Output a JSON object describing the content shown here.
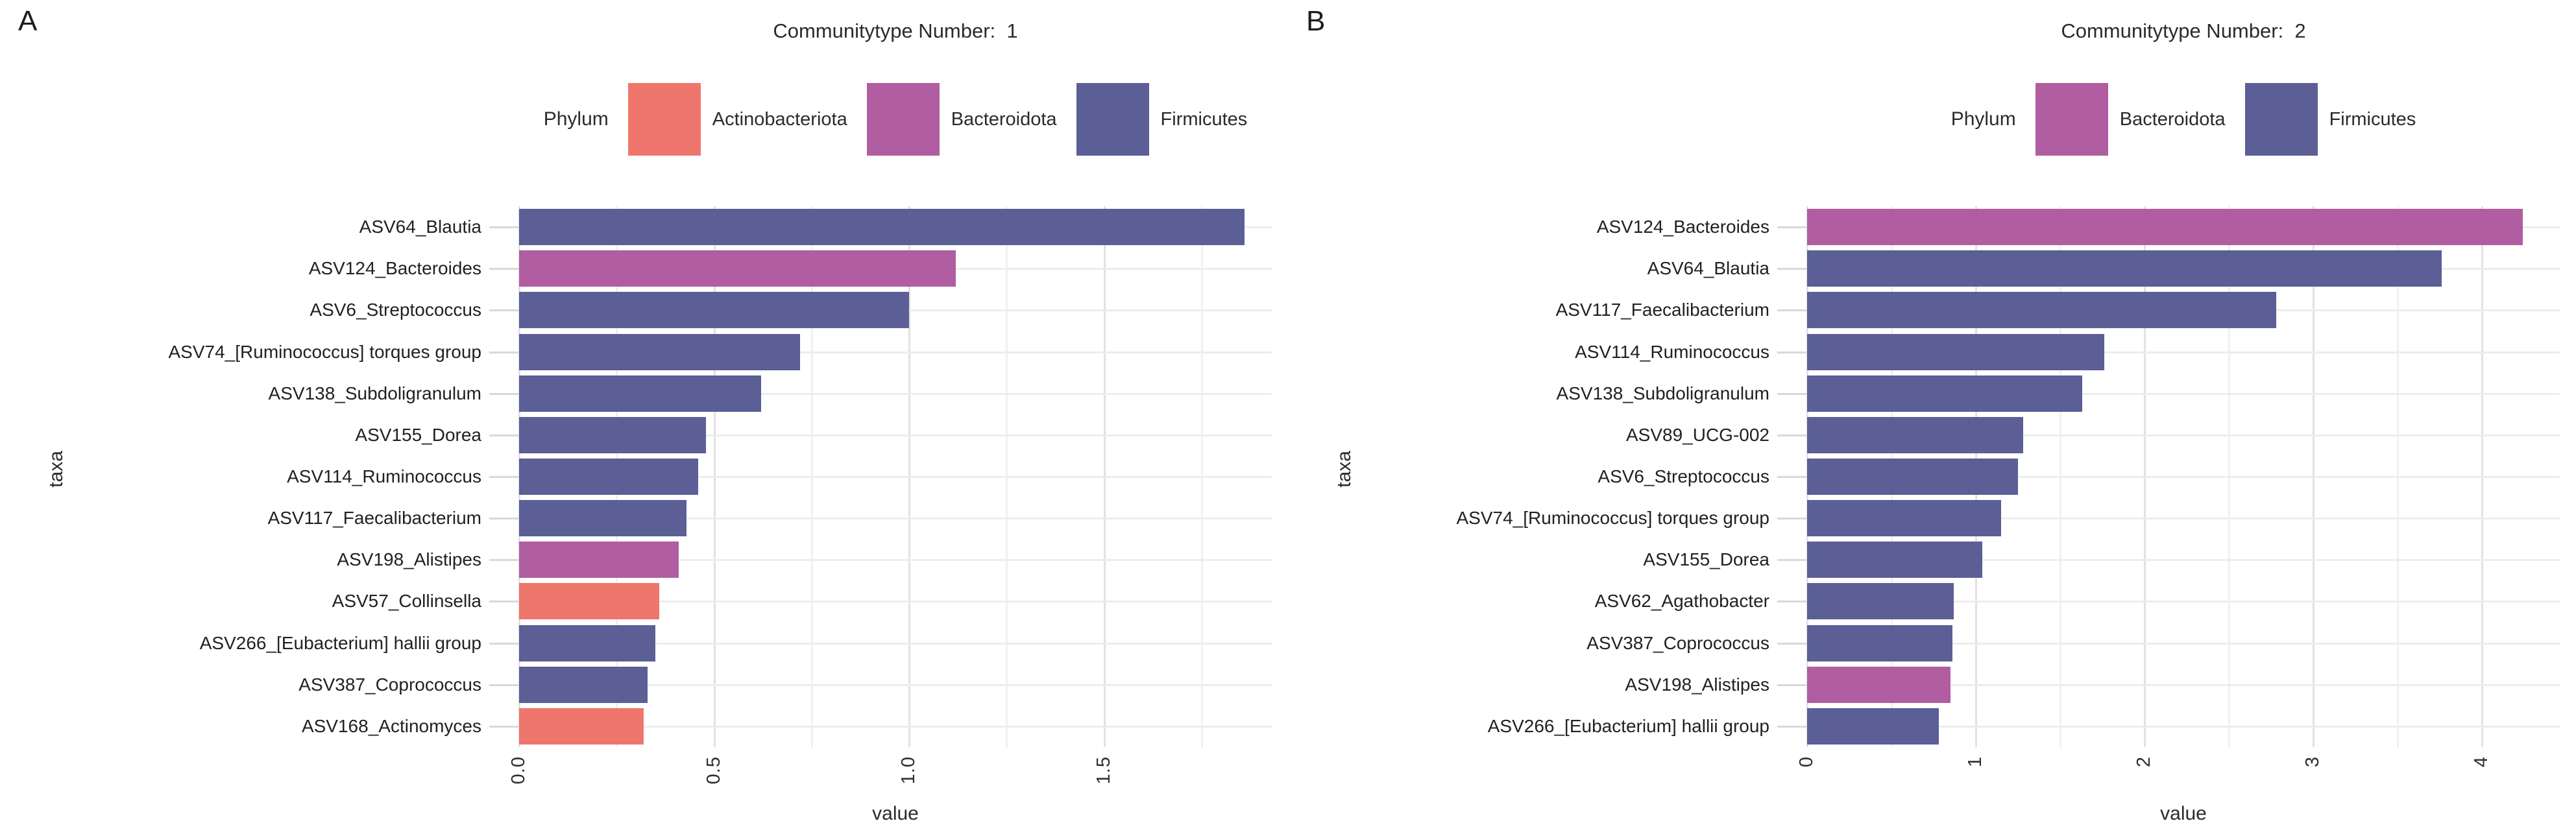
{
  "figure_title": "",
  "style": {
    "background": "#ffffff",
    "grid_major": "#e2e2e2",
    "grid_minor": "#f0f0f0",
    "row_grid": "#ededed",
    "tick_color": "#d9d9d9",
    "text_color": "#2b2b2b"
  },
  "palette": {
    "Actinobacteriota": "#EF766C",
    "Bacteroidota": "#B05DA1",
    "Firmicutes": "#5B5F96"
  },
  "chart_data": [
    {
      "type": "bar",
      "orientation": "horizontal",
      "panel_tag": "A",
      "title": "Communitytype Number:  1",
      "xlabel": "value",
      "ylabel": "taxa",
      "xlim": [
        0,
        1.93
      ],
      "x_major_ticks": [
        0,
        0.5,
        1.0,
        1.5
      ],
      "x_tick_labels": [
        "0.0",
        "0.5",
        "1.0",
        "1.5"
      ],
      "x_minor_step": 0.25,
      "grid": true,
      "legend_position": "top",
      "legend_title": "Phylum",
      "legend_items": [
        "Actinobacteriota",
        "Bacteroidota",
        "Firmicutes"
      ],
      "categories": [
        "ASV64_Blautia",
        "ASV124_Bacteroides",
        "ASV6_Streptococcus",
        "ASV74_[Ruminococcus] torques group",
        "ASV138_Subdoligranulum",
        "ASV155_Dorea",
        "ASV114_Ruminococcus",
        "ASV117_Faecalibacterium",
        "ASV198_Alistipes",
        "ASV57_Collinsella",
        "ASV266_[Eubacterium] hallii group",
        "ASV387_Coprococcus",
        "ASV168_Actinomyces"
      ],
      "values": [
        1.86,
        1.12,
        1.0,
        0.72,
        0.62,
        0.48,
        0.46,
        0.43,
        0.41,
        0.36,
        0.35,
        0.33,
        0.32
      ],
      "groups": [
        "Firmicutes",
        "Bacteroidota",
        "Firmicutes",
        "Firmicutes",
        "Firmicutes",
        "Firmicutes",
        "Firmicutes",
        "Firmicutes",
        "Bacteroidota",
        "Actinobacteriota",
        "Firmicutes",
        "Firmicutes",
        "Actinobacteriota"
      ]
    },
    {
      "type": "bar",
      "orientation": "horizontal",
      "panel_tag": "B",
      "title": "Communitytype Number:  2",
      "xlabel": "value",
      "ylabel": "taxa",
      "xlim": [
        0,
        4.46
      ],
      "x_major_ticks": [
        0,
        1,
        2,
        3,
        4
      ],
      "x_tick_labels": [
        "0",
        "1",
        "2",
        "3",
        "4"
      ],
      "x_minor_step": 0.5,
      "grid": true,
      "legend_position": "top",
      "legend_title": "Phylum",
      "legend_items": [
        "Bacteroidota",
        "Firmicutes"
      ],
      "categories": [
        "ASV124_Bacteroides",
        "ASV64_Blautia",
        "ASV117_Faecalibacterium",
        "ASV114_Ruminococcus",
        "ASV138_Subdoligranulum",
        "ASV89_UCG-002",
        "ASV6_Streptococcus",
        "ASV74_[Ruminococcus] torques group",
        "ASV155_Dorea",
        "ASV62_Agathobacter",
        "ASV387_Coprococcus",
        "ASV198_Alistipes",
        "ASV266_[Eubacterium] hallii group"
      ],
      "values": [
        4.24,
        3.76,
        2.78,
        1.76,
        1.63,
        1.28,
        1.25,
        1.15,
        1.04,
        0.87,
        0.86,
        0.85,
        0.78
      ],
      "groups": [
        "Bacteroidota",
        "Firmicutes",
        "Firmicutes",
        "Firmicutes",
        "Firmicutes",
        "Firmicutes",
        "Firmicutes",
        "Firmicutes",
        "Firmicutes",
        "Firmicutes",
        "Firmicutes",
        "Bacteroidota",
        "Firmicutes"
      ]
    }
  ]
}
